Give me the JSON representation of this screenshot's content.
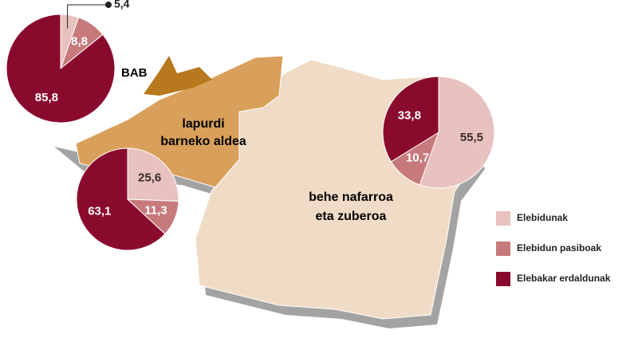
{
  "regions": [
    {
      "label": "BAB",
      "pie": {
        "values": [
          5.4,
          8.8,
          85.8
        ],
        "value_labels": [
          "5,4",
          "8,8",
          "85,8"
        ]
      }
    },
    {
      "label_lines": [
        "lapurdi",
        "barneko aldea"
      ],
      "pie": {
        "values": [
          25.6,
          11.3,
          63.1
        ],
        "value_labels": [
          "25,6",
          "11,3",
          "63,1"
        ]
      }
    },
    {
      "label_lines": [
        "behe nafarroa",
        "eta zuberoa"
      ],
      "pie": {
        "values": [
          55.5,
          10.7,
          33.8
        ],
        "value_labels": [
          "55,5",
          "10,7",
          "33,8"
        ]
      }
    }
  ],
  "legend": [
    {
      "label": "Elebidunak",
      "color": "#e8c2bf"
    },
    {
      "label": "Elebidun pasiboak",
      "color": "#c67a7b"
    },
    {
      "label": "Elebakar erdaldunak",
      "color": "#8a0a2e"
    }
  ]
}
